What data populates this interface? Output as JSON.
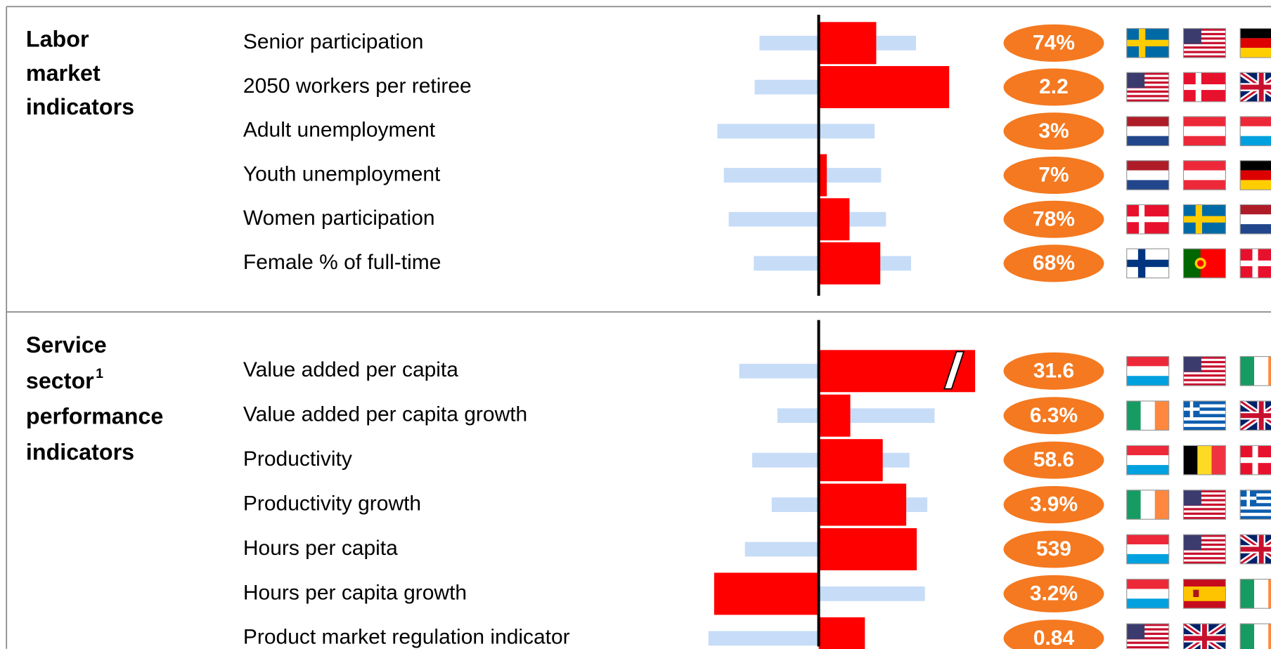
{
  "sections": [
    {
      "title_lines": [
        "Labor",
        "market",
        "indicators"
      ],
      "rows": [
        {
          "label": "Senior participation",
          "value_label": "74%",
          "bar": 7.1,
          "range": [
            -7.3,
            12.0
          ]
        },
        {
          "label": "2050 workers per retiree",
          "value_label": "2.2",
          "bar": 16.1,
          "range": [
            -7.9,
            9.0
          ]
        },
        {
          "label": "Adult unemployment",
          "value_label": "3%",
          "bar": 0,
          "range": [
            -12.5,
            6.9
          ]
        },
        {
          "label": "Youth unemployment",
          "value_label": "7%",
          "bar": 1.0,
          "range": [
            -11.7,
            7.7
          ]
        },
        {
          "label": "Women participation",
          "value_label": "78%",
          "bar": 3.8,
          "range": [
            -11.1,
            8.3
          ]
        },
        {
          "label": "Female % of full-time",
          "value_label": "68%",
          "bar": 7.6,
          "range": [
            -8.0,
            11.4
          ]
        }
      ]
    },
    {
      "title_lines": [
        "Service",
        "sector",
        "performance",
        "indicators"
      ],
      "footnote": "1",
      "rows": [
        {
          "label": "Value added per capita",
          "value_label": "31.6",
          "bar": 19.3,
          "range": [
            -9.8,
            14.0
          ]
        },
        {
          "label": "Value added per capita growth",
          "value_label": "6.3%",
          "bar": 3.9,
          "range": [
            -5.1,
            14.3
          ]
        },
        {
          "label": "Productivity",
          "value_label": "58.6",
          "bar": 7.9,
          "range": [
            -8.2,
            11.2
          ]
        },
        {
          "label": "Productivity growth",
          "value_label": "3.9%",
          "bar": 10.8,
          "range": [
            -5.8,
            13.4
          ]
        },
        {
          "label": "Hours per capita",
          "value_label": "539",
          "bar": 12.1,
          "range": [
            -9.1,
            11.0
          ]
        },
        {
          "label": "Hours per capita growth",
          "value_label": "3.2%",
          "bar": -12.9,
          "range": [
            -11.0,
            13.1
          ]
        },
        {
          "label": "Product market regulation indicator",
          "value_label": "0.84",
          "bar": 5.7,
          "range": [
            -13.6,
            5.0
          ]
        }
      ]
    }
  ]
}
